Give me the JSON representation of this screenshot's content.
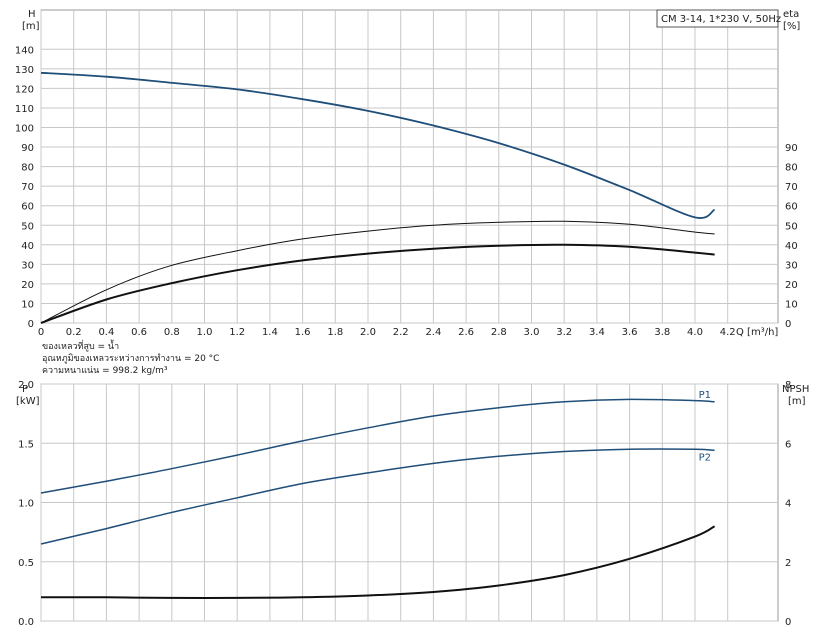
{
  "chart_data": [
    {
      "type": "line",
      "title": "CM 3-14, 1*230 V, 50Hz",
      "xlabel": "Q [m³/h]",
      "x_unit_text": "Q [m³/h]",
      "ylabel_left": "H",
      "ylabel_left_unit": "[m]",
      "ylabel_right": "eta",
      "ylabel_right_unit": "[%]",
      "xlim": [
        0,
        4.4
      ],
      "ylim_left": [
        0,
        150
      ],
      "ylim_right": [
        0,
        150
      ],
      "x_ticks": [
        "0",
        "0.2",
        "0.4",
        "0.6",
        "0.8",
        "1.0",
        "1.2",
        "1.4",
        "1.6",
        "1.8",
        "2.0",
        "2.2",
        "2.4",
        "2.6",
        "2.8",
        "3.0",
        "3.2",
        "3.4",
        "3.6",
        "3.8",
        "4.0",
        "4.2"
      ],
      "y_ticks_left": [
        "0",
        "10",
        "20",
        "30",
        "40",
        "50",
        "60",
        "70",
        "80",
        "90",
        "100",
        "110",
        "120",
        "130",
        "140"
      ],
      "y_ticks_right": [
        "0",
        "10",
        "20",
        "30",
        "40",
        "50",
        "60",
        "70",
        "80",
        "90"
      ],
      "grid": true,
      "series": [
        {
          "x": [
            0,
            0.4,
            0.78,
            1.2,
            1.6,
            2.0,
            2.4,
            2.8,
            3.2,
            3.6,
            4.0,
            4.12
          ],
          "y": [
            128,
            126,
            123,
            119.5,
            114.5,
            108.5,
            101,
            92,
            81,
            68,
            54,
            58
          ],
          "axis": "left",
          "color": "#1f4e79"
        },
        {
          "x": [
            0,
            0.4,
            0.78,
            1.2,
            1.6,
            2.0,
            2.4,
            2.8,
            3.2,
            3.6,
            4.0,
            4.12
          ],
          "y": [
            0,
            17,
            29,
            37,
            43,
            47,
            50,
            51.5,
            52,
            50.5,
            46.5,
            45.5
          ],
          "axis": "right",
          "color": "#111111"
        },
        {
          "x": [
            0,
            0.4,
            0.78,
            1.2,
            1.6,
            2.0,
            2.4,
            2.8,
            3.2,
            3.6,
            4.0,
            4.12
          ],
          "y": [
            0,
            12,
            20,
            27,
            32,
            35.5,
            38,
            39.5,
            40,
            39,
            36,
            35
          ],
          "axis": "left",
          "color": "#111111"
        }
      ],
      "notes": [
        "ของเหลวที่สูบ = น้ำ",
        "อุณหภูมิของเหลวระหว่างการทำงาน = 20 °C",
        "ความหนาแน่น = 998.2 kg/m³"
      ]
    },
    {
      "type": "line",
      "ylabel_left": "P",
      "ylabel_left_unit": "[kW]",
      "ylabel_right": "NPSH",
      "ylabel_right_unit": "[m]",
      "xlim": [
        0,
        4.4
      ],
      "ylim_left": [
        0,
        2.0
      ],
      "ylim_right": [
        0,
        8
      ],
      "y_ticks_left": [
        "0.0",
        "0.5",
        "1.0",
        "1.5",
        "2.0"
      ],
      "y_ticks_right": [
        "0",
        "2",
        "4",
        "6",
        "8"
      ],
      "grid": true,
      "series": [
        {
          "name": "P1",
          "x": [
            0,
            0.4,
            0.78,
            1.2,
            1.6,
            2.0,
            2.4,
            2.8,
            3.2,
            3.6,
            4.0,
            4.12
          ],
          "y": [
            1.08,
            1.18,
            1.28,
            1.4,
            1.52,
            1.63,
            1.73,
            1.8,
            1.85,
            1.87,
            1.86,
            1.85
          ],
          "axis": "left",
          "color": "#1f4e79"
        },
        {
          "name": "P2",
          "x": [
            0,
            0.4,
            0.78,
            1.2,
            1.6,
            2.0,
            2.4,
            2.8,
            3.2,
            3.6,
            4.0,
            4.12
          ],
          "y": [
            0.65,
            0.78,
            0.91,
            1.04,
            1.16,
            1.25,
            1.33,
            1.39,
            1.43,
            1.45,
            1.45,
            1.44
          ],
          "axis": "left",
          "color": "#1f4e79"
        },
        {
          "x": [
            0,
            0.4,
            0.78,
            1.2,
            1.6,
            2.0,
            2.4,
            2.8,
            3.2,
            3.6,
            4.0,
            4.12
          ],
          "y": [
            0.8,
            0.8,
            0.78,
            0.78,
            0.8,
            0.86,
            0.98,
            1.2,
            1.55,
            2.1,
            2.85,
            3.2
          ],
          "axis": "right",
          "color": "#111111"
        }
      ]
    }
  ]
}
